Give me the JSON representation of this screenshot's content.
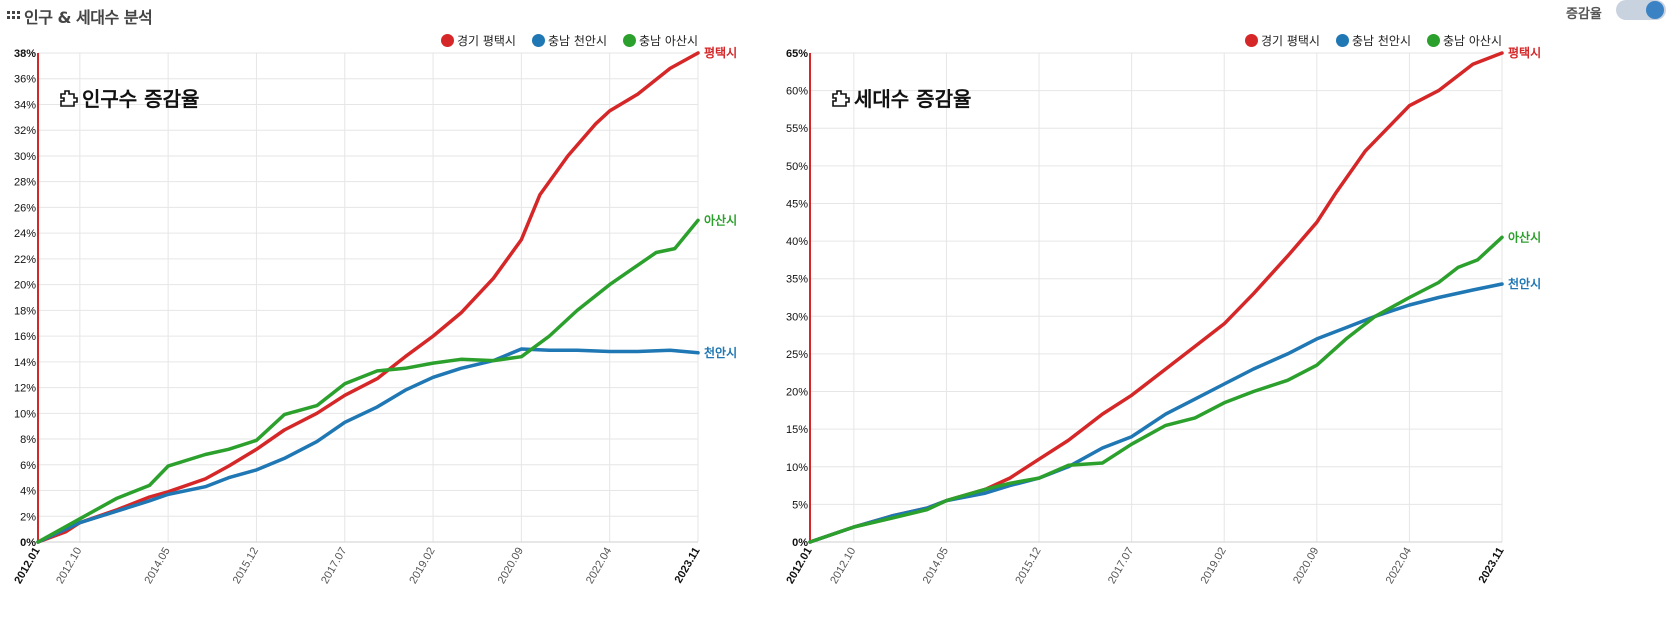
{
  "page": {
    "title": "인구 & 세대수 분석",
    "toggle_label": "증감율"
  },
  "colors": {
    "pyeongtaek": "#d62728",
    "cheonan": "#1f77b4",
    "asan": "#2ca02c",
    "grid": "#e6e6e6",
    "axis": "#d62728"
  },
  "icons": {
    "header": "grid-icon",
    "title": "puzzle-icon"
  },
  "chart_data": [
    {
      "type": "line",
      "title": "인구수 증감율",
      "x_ticks": [
        "2012.01",
        "2012.10",
        "2014.05",
        "2015.12",
        "2017.07",
        "2019.02",
        "2020.09",
        "2022.04",
        "2023.11"
      ],
      "x_tick_style": [
        "bold",
        "normal",
        "normal",
        "normal",
        "normal",
        "normal",
        "normal",
        "normal",
        "bold"
      ],
      "y_ticks": [
        "0%",
        "2%",
        "4%",
        "6%",
        "8%",
        "10%",
        "12%",
        "14%",
        "16%",
        "18%",
        "20%",
        "22%",
        "24%",
        "26%",
        "28%",
        "30%",
        "32%",
        "34%",
        "36%",
        "38%"
      ],
      "ylim": [
        0,
        38
      ],
      "x_range": [
        "2012.01",
        "2023.11"
      ],
      "legend": [
        "경기 평택시",
        "충남 천안시",
        "충남 아산시"
      ],
      "legend_position": "top-right",
      "grid": true,
      "series": [
        {
          "name": "경기 평택시",
          "end_label": "평택시",
          "color_key": "pyeongtaek",
          "points": [
            [
              "2012.01",
              0
            ],
            [
              "2012.07",
              0.8
            ],
            [
              "2012.10",
              1.5
            ],
            [
              "2013.06",
              2.5
            ],
            [
              "2014.01",
              3.5
            ],
            [
              "2014.05",
              3.9
            ],
            [
              "2015.01",
              4.9
            ],
            [
              "2015.06",
              5.9
            ],
            [
              "2015.12",
              7.2
            ],
            [
              "2016.06",
              8.7
            ],
            [
              "2017.01",
              10.0
            ],
            [
              "2017.07",
              11.4
            ],
            [
              "2018.02",
              12.7
            ],
            [
              "2018.08",
              14.4
            ],
            [
              "2019.02",
              16.0
            ],
            [
              "2019.08",
              17.8
            ],
            [
              "2020.03",
              20.5
            ],
            [
              "2020.09",
              23.5
            ],
            [
              "2021.01",
              27.0
            ],
            [
              "2021.07",
              30.0
            ],
            [
              "2022.01",
              32.5
            ],
            [
              "2022.04",
              33.5
            ],
            [
              "2022.10",
              34.8
            ],
            [
              "2023.05",
              36.8
            ],
            [
              "2023.11",
              38.0
            ]
          ]
        },
        {
          "name": "충남 천안시",
          "end_label": "천안시",
          "color_key": "cheonan",
          "points": [
            [
              "2012.01",
              0
            ],
            [
              "2012.10",
              1.5
            ],
            [
              "2013.06",
              2.4
            ],
            [
              "2014.01",
              3.2
            ],
            [
              "2014.05",
              3.7
            ],
            [
              "2015.01",
              4.3
            ],
            [
              "2015.06",
              5.0
            ],
            [
              "2015.12",
              5.6
            ],
            [
              "2016.06",
              6.5
            ],
            [
              "2017.01",
              7.8
            ],
            [
              "2017.07",
              9.3
            ],
            [
              "2018.02",
              10.5
            ],
            [
              "2018.08",
              11.8
            ],
            [
              "2019.02",
              12.8
            ],
            [
              "2019.08",
              13.5
            ],
            [
              "2020.03",
              14.1
            ],
            [
              "2020.09",
              15.0
            ],
            [
              "2021.03",
              14.9
            ],
            [
              "2021.09",
              14.9
            ],
            [
              "2022.04",
              14.8
            ],
            [
              "2022.10",
              14.8
            ],
            [
              "2023.05",
              14.9
            ],
            [
              "2023.11",
              14.7
            ]
          ]
        },
        {
          "name": "충남 아산시",
          "end_label": "아산시",
          "color_key": "asan",
          "points": [
            [
              "2012.01",
              0
            ],
            [
              "2012.10",
              1.8
            ],
            [
              "2013.06",
              3.4
            ],
            [
              "2014.01",
              4.4
            ],
            [
              "2014.05",
              5.9
            ],
            [
              "2015.01",
              6.8
            ],
            [
              "2015.06",
              7.2
            ],
            [
              "2015.12",
              7.9
            ],
            [
              "2016.06",
              9.9
            ],
            [
              "2017.01",
              10.6
            ],
            [
              "2017.07",
              12.3
            ],
            [
              "2018.02",
              13.3
            ],
            [
              "2018.08",
              13.5
            ],
            [
              "2019.02",
              13.9
            ],
            [
              "2019.08",
              14.2
            ],
            [
              "2020.03",
              14.1
            ],
            [
              "2020.09",
              14.4
            ],
            [
              "2021.03",
              16.0
            ],
            [
              "2021.09",
              18.0
            ],
            [
              "2022.04",
              20.0
            ],
            [
              "2022.10",
              21.5
            ],
            [
              "2023.02",
              22.5
            ],
            [
              "2023.06",
              22.8
            ],
            [
              "2023.11",
              25.0
            ]
          ]
        }
      ]
    },
    {
      "type": "line",
      "title": "세대수 증감율",
      "x_ticks": [
        "2012.01",
        "2012.10",
        "2014.05",
        "2015.12",
        "2017.07",
        "2019.02",
        "2020.09",
        "2022.04",
        "2023.11"
      ],
      "x_tick_style": [
        "bold",
        "normal",
        "normal",
        "normal",
        "normal",
        "normal",
        "normal",
        "normal",
        "bold"
      ],
      "y_ticks": [
        "0%",
        "5%",
        "10%",
        "15%",
        "20%",
        "25%",
        "30%",
        "35%",
        "40%",
        "45%",
        "50%",
        "55%",
        "60%",
        "65%"
      ],
      "ylim": [
        0,
        65
      ],
      "x_range": [
        "2012.01",
        "2023.11"
      ],
      "legend": [
        "경기 평택시",
        "충남 천안시",
        "충남 아산시"
      ],
      "legend_position": "top-right",
      "grid": true,
      "series": [
        {
          "name": "경기 평택시",
          "end_label": "평택시",
          "color_key": "pyeongtaek",
          "points": [
            [
              "2012.01",
              0
            ],
            [
              "2012.10",
              2.0
            ],
            [
              "2013.06",
              3.5
            ],
            [
              "2014.01",
              4.5
            ],
            [
              "2014.05",
              5.5
            ],
            [
              "2015.01",
              7.0
            ],
            [
              "2015.06",
              8.5
            ],
            [
              "2015.12",
              11.0
            ],
            [
              "2016.06",
              13.5
            ],
            [
              "2017.01",
              17.0
            ],
            [
              "2017.07",
              19.5
            ],
            [
              "2018.02",
              23.0
            ],
            [
              "2018.08",
              26.0
            ],
            [
              "2019.02",
              29.0
            ],
            [
              "2019.08",
              33.0
            ],
            [
              "2020.03",
              38.0
            ],
            [
              "2020.09",
              42.5
            ],
            [
              "2021.01",
              46.5
            ],
            [
              "2021.07",
              52.0
            ],
            [
              "2022.01",
              56.0
            ],
            [
              "2022.04",
              58.0
            ],
            [
              "2022.10",
              60.0
            ],
            [
              "2023.05",
              63.5
            ],
            [
              "2023.11",
              65.0
            ]
          ]
        },
        {
          "name": "충남 천안시",
          "end_label": "천안시",
          "color_key": "cheonan",
          "points": [
            [
              "2012.01",
              0
            ],
            [
              "2012.10",
              2.0
            ],
            [
              "2013.06",
              3.5
            ],
            [
              "2014.01",
              4.5
            ],
            [
              "2014.05",
              5.5
            ],
            [
              "2015.01",
              6.5
            ],
            [
              "2015.06",
              7.5
            ],
            [
              "2015.12",
              8.5
            ],
            [
              "2016.06",
              10.0
            ],
            [
              "2017.01",
              12.5
            ],
            [
              "2017.07",
              14.0
            ],
            [
              "2018.02",
              17.0
            ],
            [
              "2018.08",
              19.0
            ],
            [
              "2019.02",
              21.0
            ],
            [
              "2019.08",
              23.0
            ],
            [
              "2020.03",
              25.0
            ],
            [
              "2020.09",
              27.0
            ],
            [
              "2021.03",
              28.5
            ],
            [
              "2021.09",
              30.0
            ],
            [
              "2022.04",
              31.5
            ],
            [
              "2022.10",
              32.5
            ],
            [
              "2023.05",
              33.5
            ],
            [
              "2023.11",
              34.3
            ]
          ]
        },
        {
          "name": "충남 아산시",
          "end_label": "아산시",
          "color_key": "asan",
          "points": [
            [
              "2012.01",
              0
            ],
            [
              "2012.10",
              2.0
            ],
            [
              "2013.06",
              3.2
            ],
            [
              "2014.01",
              4.3
            ],
            [
              "2014.05",
              5.5
            ],
            [
              "2015.01",
              7.0
            ],
            [
              "2015.06",
              7.8
            ],
            [
              "2015.12",
              8.5
            ],
            [
              "2016.06",
              10.2
            ],
            [
              "2017.01",
              10.5
            ],
            [
              "2017.07",
              13.0
            ],
            [
              "2018.02",
              15.5
            ],
            [
              "2018.08",
              16.5
            ],
            [
              "2019.02",
              18.5
            ],
            [
              "2019.08",
              20.0
            ],
            [
              "2020.03",
              21.5
            ],
            [
              "2020.09",
              23.5
            ],
            [
              "2021.03",
              27.0
            ],
            [
              "2021.09",
              30.0
            ],
            [
              "2022.04",
              32.5
            ],
            [
              "2022.10",
              34.5
            ],
            [
              "2023.02",
              36.5
            ],
            [
              "2023.06",
              37.5
            ],
            [
              "2023.11",
              40.5
            ]
          ]
        }
      ]
    }
  ]
}
